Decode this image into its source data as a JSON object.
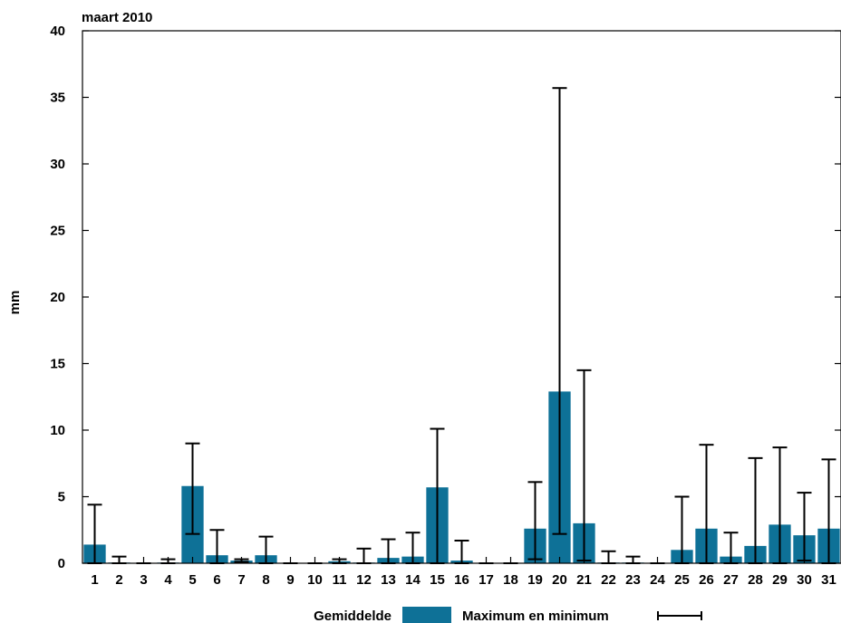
{
  "chart_data": {
    "type": "bar",
    "title": "maart 2010",
    "ylabel": "mm",
    "xlabel": "",
    "ylim": [
      0,
      40
    ],
    "yticks": [
      0,
      5,
      10,
      15,
      20,
      25,
      30,
      35,
      40
    ],
    "categories": [
      "1",
      "2",
      "3",
      "4",
      "5",
      "6",
      "7",
      "8",
      "9",
      "10",
      "11",
      "12",
      "13",
      "14",
      "15",
      "16",
      "17",
      "18",
      "19",
      "20",
      "21",
      "22",
      "23",
      "24",
      "25",
      "26",
      "27",
      "28",
      "29",
      "30",
      "31"
    ],
    "series": [
      {
        "name": "Gemiddelde",
        "type": "bar",
        "values": [
          1.4,
          0.05,
          0.0,
          0.05,
          5.8,
          0.6,
          0.2,
          0.6,
          0.0,
          0.0,
          0.15,
          0.05,
          0.4,
          0.5,
          5.7,
          0.2,
          0.0,
          0.0,
          2.6,
          12.9,
          3.0,
          0.05,
          0.05,
          0.0,
          1.0,
          2.6,
          0.5,
          1.3,
          2.9,
          2.1,
          2.6
        ]
      },
      {
        "name": "Maximum en minimum",
        "type": "errorbar",
        "max": [
          4.4,
          0.5,
          0.0,
          0.3,
          9.0,
          2.5,
          0.3,
          2.0,
          0.0,
          0.0,
          0.3,
          1.1,
          1.8,
          2.3,
          10.1,
          1.7,
          0.0,
          0.0,
          6.1,
          35.7,
          14.5,
          0.9,
          0.5,
          0.0,
          5.0,
          8.9,
          2.3,
          7.9,
          8.7,
          5.3,
          7.8
        ],
        "min": [
          0.0,
          0.0,
          0.0,
          0.0,
          2.2,
          0.0,
          0.1,
          0.0,
          0.0,
          0.0,
          0.0,
          0.0,
          0.0,
          0.0,
          0.0,
          0.0,
          0.0,
          0.0,
          0.3,
          2.2,
          0.2,
          0.0,
          0.0,
          0.0,
          0.0,
          0.0,
          0.0,
          0.0,
          0.0,
          0.2,
          0.0
        ]
      }
    ],
    "legend": {
      "position": "bottom",
      "items": [
        "Gemiddelde",
        "Maximum en minimum"
      ]
    },
    "grid": false,
    "colors": {
      "bar": "#0e7197",
      "errorbar": "#000000",
      "axis": "#000000"
    }
  }
}
